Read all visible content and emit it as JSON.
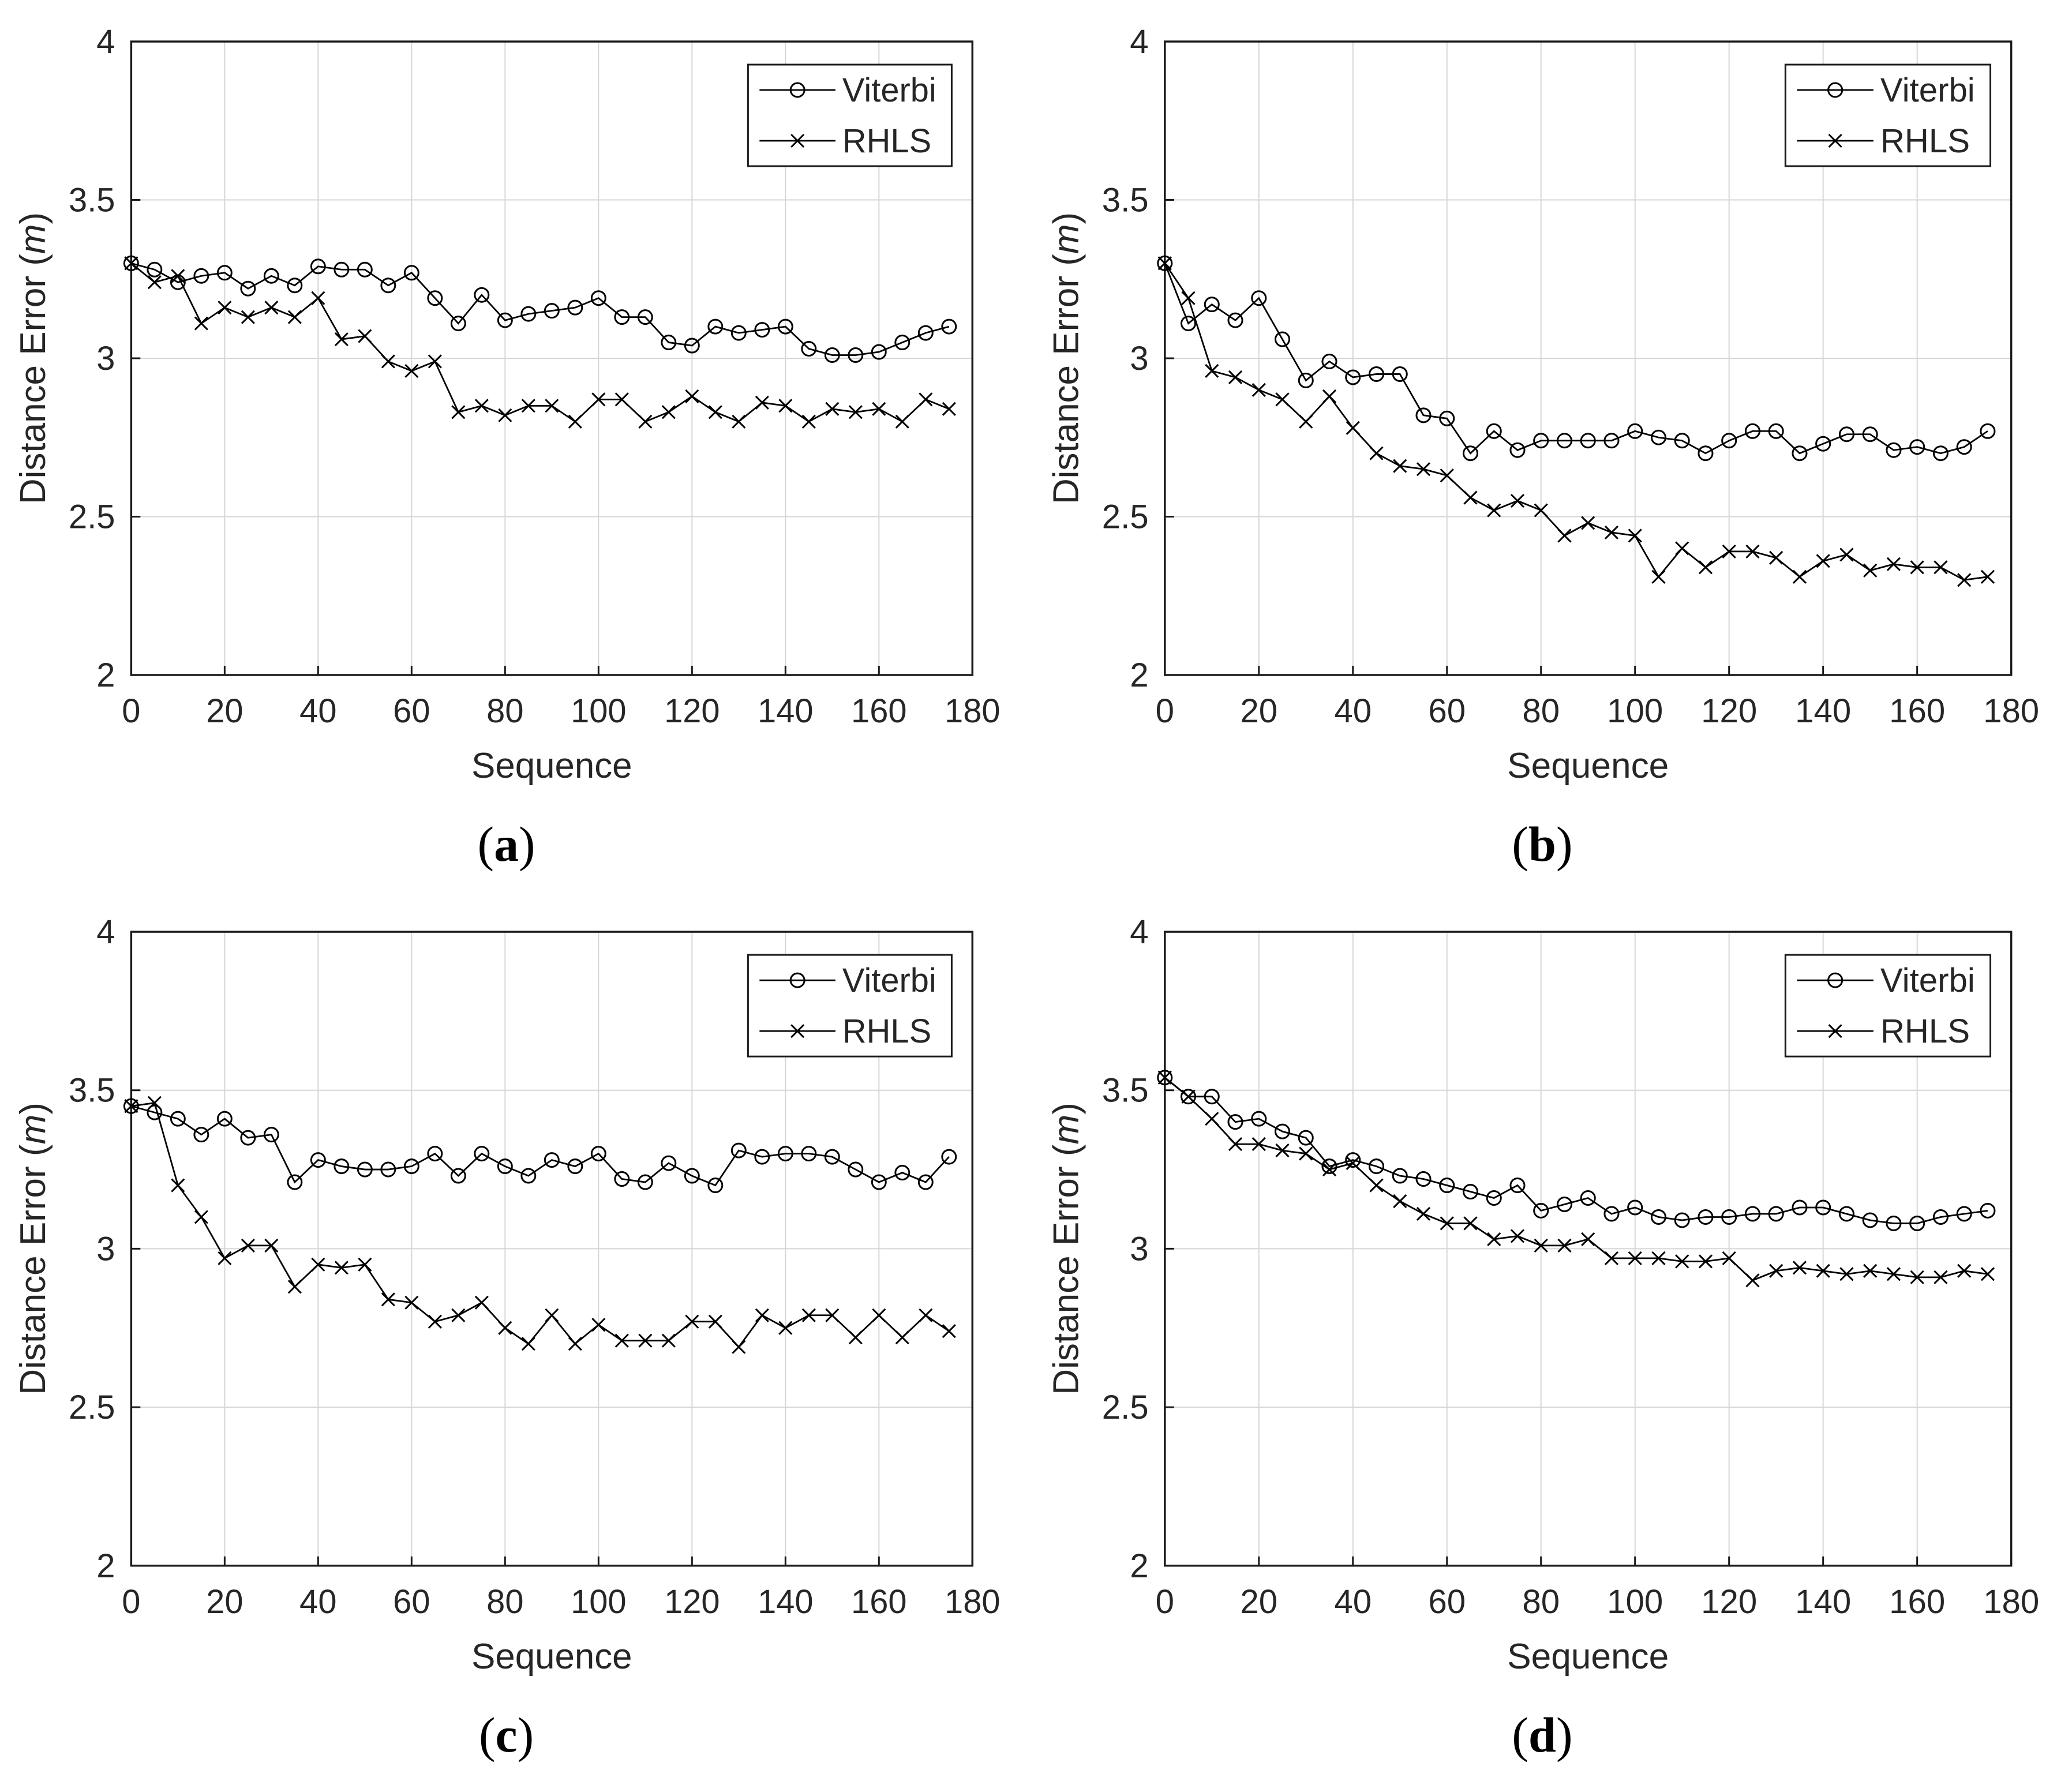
{
  "figure_type": "2x2-line-chart-grid",
  "colors": {
    "line": "#000000",
    "grid": "#d6d6d6",
    "axis": "#1a1a1a",
    "text": "#262626",
    "caption": "#000000",
    "background": "#ffffff"
  },
  "chart_data": [
    {
      "type": "line",
      "caption": "(a)",
      "xlabel": "Sequence",
      "ylabel": "Distance Error (m)",
      "ylabel_unit_italic": true,
      "xlim": [
        0,
        180
      ],
      "ylim": [
        2,
        4
      ],
      "xticks": [
        0,
        20,
        40,
        60,
        80,
        100,
        120,
        140,
        160,
        180
      ],
      "yticks": [
        2,
        2.5,
        3,
        3.5,
        4
      ],
      "grid": true,
      "legend_position": "top-right",
      "x": [
        0,
        5,
        10,
        15,
        20,
        25,
        30,
        35,
        40,
        45,
        50,
        55,
        60,
        65,
        70,
        75,
        80,
        85,
        90,
        95,
        100,
        105,
        110,
        115,
        120,
        125,
        130,
        135,
        140,
        145,
        150,
        155,
        160,
        165,
        170,
        175
      ],
      "series": [
        {
          "name": "Viterbi",
          "marker": "circle",
          "values": [
            3.3,
            3.28,
            3.24,
            3.26,
            3.27,
            3.22,
            3.26,
            3.23,
            3.29,
            3.28,
            3.28,
            3.23,
            3.27,
            3.19,
            3.11,
            3.2,
            3.12,
            3.14,
            3.15,
            3.16,
            3.19,
            3.13,
            3.13,
            3.05,
            3.04,
            3.1,
            3.08,
            3.09,
            3.1,
            3.03,
            3.01,
            3.01,
            3.02,
            3.05,
            3.08,
            3.1
          ]
        },
        {
          "name": "RHLS",
          "marker": "x",
          "values": [
            3.3,
            3.24,
            3.26,
            3.11,
            3.16,
            3.13,
            3.16,
            3.13,
            3.19,
            3.06,
            3.07,
            2.99,
            2.96,
            2.99,
            2.83,
            2.85,
            2.82,
            2.85,
            2.85,
            2.8,
            2.87,
            2.87,
            2.8,
            2.83,
            2.88,
            2.83,
            2.8,
            2.86,
            2.85,
            2.8,
            2.84,
            2.83,
            2.84,
            2.8,
            2.87,
            2.84
          ]
        }
      ]
    },
    {
      "type": "line",
      "caption": "(b)",
      "xlabel": "Sequence",
      "ylabel": "Distance Error (m)",
      "ylabel_unit_italic": true,
      "xlim": [
        0,
        180
      ],
      "ylim": [
        2,
        4
      ],
      "xticks": [
        0,
        20,
        40,
        60,
        80,
        100,
        120,
        140,
        160,
        180
      ],
      "yticks": [
        2,
        2.5,
        3,
        3.5,
        4
      ],
      "grid": true,
      "legend_position": "top-right",
      "x": [
        0,
        5,
        10,
        15,
        20,
        25,
        30,
        35,
        40,
        45,
        50,
        55,
        60,
        65,
        70,
        75,
        80,
        85,
        90,
        95,
        100,
        105,
        110,
        115,
        120,
        125,
        130,
        135,
        140,
        145,
        150,
        155,
        160,
        165,
        170,
        175
      ],
      "series": [
        {
          "name": "Viterbi",
          "marker": "circle",
          "values": [
            3.3,
            3.11,
            3.17,
            3.12,
            3.19,
            3.06,
            2.93,
            2.99,
            2.94,
            2.95,
            2.95,
            2.82,
            2.81,
            2.7,
            2.77,
            2.71,
            2.74,
            2.74,
            2.74,
            2.74,
            2.77,
            2.75,
            2.74,
            2.7,
            2.74,
            2.77,
            2.77,
            2.7,
            2.73,
            2.76,
            2.76,
            2.71,
            2.72,
            2.7,
            2.72,
            2.77
          ]
        },
        {
          "name": "RHLS",
          "marker": "x",
          "values": [
            3.3,
            3.19,
            2.96,
            2.94,
            2.9,
            2.87,
            2.8,
            2.88,
            2.78,
            2.7,
            2.66,
            2.65,
            2.63,
            2.56,
            2.52,
            2.55,
            2.52,
            2.44,
            2.48,
            2.45,
            2.44,
            2.31,
            2.4,
            2.34,
            2.39,
            2.39,
            2.37,
            2.31,
            2.36,
            2.38,
            2.33,
            2.35,
            2.34,
            2.34,
            2.3,
            2.31
          ]
        }
      ]
    },
    {
      "type": "line",
      "caption": "(c)",
      "xlabel": "Sequence",
      "ylabel": "Distance Error (m)",
      "ylabel_unit_italic": true,
      "xlim": [
        0,
        180
      ],
      "ylim": [
        2,
        4
      ],
      "xticks": [
        0,
        20,
        40,
        60,
        80,
        100,
        120,
        140,
        160,
        180
      ],
      "yticks": [
        2,
        2.5,
        3,
        3.5,
        4
      ],
      "grid": true,
      "legend_position": "top-right",
      "x": [
        0,
        5,
        10,
        15,
        20,
        25,
        30,
        35,
        40,
        45,
        50,
        55,
        60,
        65,
        70,
        75,
        80,
        85,
        90,
        95,
        100,
        105,
        110,
        115,
        120,
        125,
        130,
        135,
        140,
        145,
        150,
        155,
        160,
        165,
        170,
        175
      ],
      "series": [
        {
          "name": "Viterbi",
          "marker": "circle",
          "values": [
            3.45,
            3.43,
            3.41,
            3.36,
            3.41,
            3.35,
            3.36,
            3.21,
            3.28,
            3.26,
            3.25,
            3.25,
            3.26,
            3.3,
            3.23,
            3.3,
            3.26,
            3.23,
            3.28,
            3.26,
            3.3,
            3.22,
            3.21,
            3.27,
            3.23,
            3.2,
            3.31,
            3.29,
            3.3,
            3.3,
            3.29,
            3.25,
            3.21,
            3.24,
            3.21,
            3.29
          ]
        },
        {
          "name": "RHLS",
          "marker": "x",
          "values": [
            3.45,
            3.46,
            3.2,
            3.1,
            2.97,
            3.01,
            3.01,
            2.88,
            2.95,
            2.94,
            2.95,
            2.84,
            2.83,
            2.77,
            2.79,
            2.83,
            2.75,
            2.7,
            2.79,
            2.7,
            2.76,
            2.71,
            2.71,
            2.71,
            2.77,
            2.77,
            2.69,
            2.79,
            2.75,
            2.79,
            2.79,
            2.72,
            2.79,
            2.72,
            2.79,
            2.74
          ]
        }
      ]
    },
    {
      "type": "line",
      "caption": "(d)",
      "xlabel": "Sequence",
      "ylabel": "Distance Error (m)",
      "ylabel_unit_italic": true,
      "xlim": [
        0,
        180
      ],
      "ylim": [
        2,
        4
      ],
      "xticks": [
        0,
        20,
        40,
        60,
        80,
        100,
        120,
        140,
        160,
        180
      ],
      "yticks": [
        2,
        2.5,
        3,
        3.5,
        4
      ],
      "grid": true,
      "legend_position": "top-right",
      "x": [
        0,
        5,
        10,
        15,
        20,
        25,
        30,
        35,
        40,
        45,
        50,
        55,
        60,
        65,
        70,
        75,
        80,
        85,
        90,
        95,
        100,
        105,
        110,
        115,
        120,
        125,
        130,
        135,
        140,
        145,
        150,
        155,
        160,
        165,
        170,
        175
      ],
      "series": [
        {
          "name": "Viterbi",
          "marker": "circle",
          "values": [
            3.54,
            3.48,
            3.48,
            3.4,
            3.41,
            3.37,
            3.35,
            3.26,
            3.28,
            3.26,
            3.23,
            3.22,
            3.2,
            3.18,
            3.16,
            3.2,
            3.12,
            3.14,
            3.16,
            3.11,
            3.13,
            3.1,
            3.09,
            3.1,
            3.1,
            3.11,
            3.11,
            3.13,
            3.13,
            3.11,
            3.09,
            3.08,
            3.08,
            3.1,
            3.11,
            3.12
          ]
        },
        {
          "name": "RHLS",
          "marker": "x",
          "values": [
            3.54,
            3.48,
            3.41,
            3.33,
            3.33,
            3.31,
            3.3,
            3.25,
            3.27,
            3.2,
            3.15,
            3.11,
            3.08,
            3.08,
            3.03,
            3.04,
            3.01,
            3.01,
            3.03,
            2.97,
            2.97,
            2.97,
            2.96,
            2.96,
            2.97,
            2.9,
            2.93,
            2.94,
            2.93,
            2.92,
            2.93,
            2.92,
            2.91,
            2.91,
            2.93,
            2.92
          ]
        }
      ]
    }
  ]
}
